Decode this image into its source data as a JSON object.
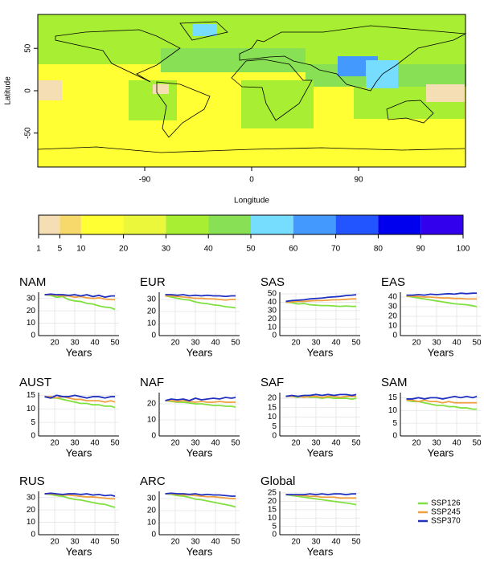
{
  "map": {
    "xlabel": "Longitude",
    "ylabel": "Latitude",
    "xlim": [
      -180,
      180
    ],
    "ylim": [
      -90,
      90
    ],
    "xticks": [
      -90,
      0,
      90
    ],
    "yticks": [
      -50,
      0,
      50
    ]
  },
  "colorbar": {
    "breaks": [
      1,
      5,
      10,
      20,
      30,
      40,
      50,
      60,
      70,
      80,
      90,
      100
    ],
    "colors": [
      "#f5deb3",
      "#f7d86a",
      "#ffff33",
      "#eaf73a",
      "#a8ee33",
      "#88e055",
      "#77ddff",
      "#4499ff",
      "#2255ff",
      "#0000ee",
      "#3300ee"
    ]
  },
  "chart_data": [
    {
      "type": "line",
      "title": "NAM",
      "xlabel": "Years",
      "x": [
        15,
        18,
        21,
        24,
        27,
        30,
        33,
        36,
        39,
        42,
        45,
        48,
        50
      ],
      "xlim": [
        12,
        52
      ],
      "xticks": [
        20,
        30,
        40,
        50
      ],
      "ylim": [
        0,
        35
      ],
      "yticks": [
        0,
        10,
        20,
        30
      ],
      "series": [
        {
          "name": "SSP126",
          "color": "#80e040",
          "values": [
            33,
            32.5,
            31,
            31.5,
            29,
            28,
            27.5,
            26,
            25.5,
            24,
            23,
            22.5,
            21
          ]
        },
        {
          "name": "SSP245",
          "color": "#f0a040",
          "values": [
            33,
            33,
            32.5,
            32,
            32,
            31,
            31.5,
            30.5,
            30,
            30.5,
            29.5,
            29,
            29
          ]
        },
        {
          "name": "SSP370",
          "color": "#2030c0",
          "values": [
            33,
            33.5,
            33,
            33,
            32.5,
            33,
            32,
            33,
            31.5,
            32.5,
            31,
            32,
            32
          ]
        }
      ]
    },
    {
      "type": "line",
      "title": "EUR",
      "xlabel": "Years",
      "x": [
        15,
        18,
        21,
        24,
        27,
        30,
        33,
        36,
        39,
        42,
        45,
        48,
        50
      ],
      "xlim": [
        12,
        52
      ],
      "xticks": [
        20,
        30,
        40,
        50
      ],
      "ylim": [
        0,
        36
      ],
      "yticks": [
        0,
        10,
        20,
        30
      ],
      "series": [
        {
          "name": "SSP126",
          "color": "#80e040",
          "values": [
            33,
            32,
            31,
            30,
            29.5,
            28,
            27,
            26.5,
            25.5,
            25,
            24,
            23.5,
            23
          ]
        },
        {
          "name": "SSP245",
          "color": "#f0a040",
          "values": [
            33,
            33,
            32.5,
            32,
            31.5,
            31,
            31,
            30.5,
            30.5,
            30,
            29.5,
            30,
            30
          ]
        },
        {
          "name": "SSP370",
          "color": "#2030c0",
          "values": [
            34,
            34,
            33.5,
            34,
            33,
            33.5,
            33,
            33.5,
            33,
            33,
            32.5,
            33,
            33
          ]
        }
      ]
    },
    {
      "type": "line",
      "title": "SAS",
      "xlabel": "Years",
      "x": [
        15,
        18,
        21,
        24,
        27,
        30,
        33,
        36,
        39,
        42,
        45,
        48,
        50
      ],
      "xlim": [
        12,
        52
      ],
      "xticks": [
        20,
        30,
        40,
        50
      ],
      "ylim": [
        0,
        52
      ],
      "yticks": [
        0,
        10,
        20,
        30,
        40,
        50
      ],
      "series": [
        {
          "name": "SSP126",
          "color": "#80e040",
          "values": [
            40,
            39.5,
            38,
            38.5,
            37,
            36.5,
            36,
            36,
            35.5,
            35,
            35.5,
            35,
            35
          ]
        },
        {
          "name": "SSP245",
          "color": "#f0a040",
          "values": [
            40,
            40.5,
            41,
            41,
            41.5,
            42,
            42,
            42.5,
            43,
            43,
            43.5,
            44,
            44
          ]
        },
        {
          "name": "SSP370",
          "color": "#2030c0",
          "values": [
            41,
            42,
            42.5,
            43,
            44,
            44.5,
            45,
            46,
            46.5,
            47,
            48,
            48.5,
            49
          ]
        }
      ]
    },
    {
      "type": "line",
      "title": "EAS",
      "xlabel": "Years",
      "x": [
        15,
        18,
        21,
        24,
        27,
        30,
        33,
        36,
        39,
        42,
        45,
        48,
        50
      ],
      "xlim": [
        12,
        52
      ],
      "xticks": [
        20,
        30,
        40,
        50
      ],
      "ylim": [
        0,
        45
      ],
      "yticks": [
        0,
        10,
        20,
        30,
        40
      ],
      "series": [
        {
          "name": "SSP126",
          "color": "#80e040",
          "values": [
            41,
            40,
            39,
            38,
            37,
            36,
            35,
            34,
            33,
            32.5,
            32,
            31,
            30
          ]
        },
        {
          "name": "SSP245",
          "color": "#f0a040",
          "values": [
            41,
            41,
            40.5,
            40,
            40,
            39.5,
            39,
            39,
            38.5,
            38.5,
            38,
            38,
            38
          ]
        },
        {
          "name": "SSP370",
          "color": "#2030c0",
          "values": [
            42,
            42,
            42.5,
            42,
            43,
            42.5,
            43,
            43.5,
            43,
            44,
            43.5,
            44,
            44
          ]
        }
      ]
    },
    {
      "type": "line",
      "title": "AUST",
      "xlabel": "Years",
      "x": [
        15,
        18,
        21,
        24,
        27,
        30,
        33,
        36,
        39,
        42,
        45,
        48,
        50
      ],
      "xlim": [
        12,
        52
      ],
      "xticks": [
        20,
        30,
        40,
        50
      ],
      "ylim": [
        0,
        16
      ],
      "yticks": [
        0,
        5,
        10,
        15
      ],
      "series": [
        {
          "name": "SSP126",
          "color": "#80e040",
          "values": [
            14.5,
            14,
            14,
            13.5,
            13,
            12.5,
            12,
            12,
            11.5,
            11.5,
            11,
            11,
            10.5
          ]
        },
        {
          "name": "SSP245",
          "color": "#f0a040",
          "values": [
            14.5,
            14.5,
            14,
            14.5,
            14,
            13.5,
            13.5,
            13,
            13,
            13,
            12.5,
            13,
            12.5
          ]
        },
        {
          "name": "SSP370",
          "color": "#2030c0",
          "values": [
            14.5,
            14,
            15,
            14.5,
            14.5,
            15,
            14.5,
            14,
            14.5,
            14.5,
            14,
            14.5,
            14.5
          ]
        }
      ]
    },
    {
      "type": "line",
      "title": "NAF",
      "xlabel": "Years",
      "x": [
        15,
        18,
        21,
        24,
        27,
        30,
        33,
        36,
        39,
        42,
        45,
        48,
        50
      ],
      "xlim": [
        12,
        52
      ],
      "xticks": [
        20,
        30,
        40,
        50
      ],
      "ylim": [
        0,
        27
      ],
      "yticks": [
        0,
        10,
        20
      ],
      "series": [
        {
          "name": "SSP126",
          "color": "#80e040",
          "values": [
            22,
            21.5,
            21,
            21,
            20.5,
            20,
            20,
            19.5,
            19,
            19,
            18.5,
            18.5,
            18
          ]
        },
        {
          "name": "SSP245",
          "color": "#f0a040",
          "values": [
            22,
            22,
            21.5,
            22,
            21.5,
            21,
            21.5,
            21,
            21,
            21.5,
            21,
            21,
            21
          ]
        },
        {
          "name": "SSP370",
          "color": "#2030c0",
          "values": [
            22,
            23,
            22.5,
            23,
            22,
            23.5,
            22.5,
            23,
            23.5,
            23,
            24,
            23.5,
            24
          ]
        }
      ]
    },
    {
      "type": "line",
      "title": "SAF",
      "xlabel": "Years",
      "x": [
        15,
        18,
        21,
        24,
        27,
        30,
        33,
        36,
        39,
        42,
        45,
        48,
        50
      ],
      "xlim": [
        12,
        52
      ],
      "xticks": [
        20,
        30,
        40,
        50
      ],
      "ylim": [
        0,
        23
      ],
      "yticks": [
        0,
        5,
        10,
        15,
        20
      ],
      "series": [
        {
          "name": "SSP126",
          "color": "#80e040",
          "values": [
            21,
            21,
            20.5,
            21,
            20.5,
            20.5,
            20,
            20.5,
            20,
            20,
            20,
            19.5,
            20
          ]
        },
        {
          "name": "SSP245",
          "color": "#f0a040",
          "values": [
            21,
            21,
            21,
            20.5,
            21,
            21,
            20.5,
            21,
            21,
            20.5,
            21,
            21,
            21
          ]
        },
        {
          "name": "SSP370",
          "color": "#2030c0",
          "values": [
            21,
            21.5,
            21,
            21.5,
            21.5,
            22,
            21.5,
            22,
            21.5,
            22,
            22,
            21.5,
            22
          ]
        }
      ]
    },
    {
      "type": "line",
      "title": "SAM",
      "xlabel": "Years",
      "x": [
        15,
        18,
        21,
        24,
        27,
        30,
        33,
        36,
        39,
        42,
        45,
        48,
        50
      ],
      "xlim": [
        12,
        52
      ],
      "xticks": [
        20,
        30,
        40,
        50
      ],
      "ylim": [
        0,
        17
      ],
      "yticks": [
        0,
        5,
        10,
        15
      ],
      "series": [
        {
          "name": "SSP126",
          "color": "#80e040",
          "values": [
            14,
            13.5,
            13.5,
            13,
            12.5,
            12,
            12,
            11.5,
            11.5,
            11,
            11,
            10.5,
            10.5
          ]
        },
        {
          "name": "SSP245",
          "color": "#f0a040",
          "values": [
            14,
            14,
            13.5,
            14,
            13.5,
            13.5,
            13,
            13.5,
            13,
            13,
            13,
            13,
            13
          ]
        },
        {
          "name": "SSP370",
          "color": "#2030c0",
          "values": [
            14.5,
            14.5,
            15,
            14.5,
            15,
            15,
            14.5,
            15,
            15.5,
            15,
            15.5,
            15,
            15.5
          ]
        }
      ]
    },
    {
      "type": "line",
      "title": "RUS",
      "xlabel": "Years",
      "x": [
        15,
        18,
        21,
        24,
        27,
        30,
        33,
        36,
        39,
        42,
        45,
        48,
        50
      ],
      "xlim": [
        12,
        52
      ],
      "xticks": [
        20,
        30,
        40,
        50
      ],
      "ylim": [
        0,
        35
      ],
      "yticks": [
        0,
        10,
        20,
        30
      ],
      "series": [
        {
          "name": "SSP126",
          "color": "#80e040",
          "values": [
            33,
            32.5,
            31.5,
            31,
            29.5,
            28.5,
            28,
            27,
            26,
            25,
            24.5,
            23,
            22
          ]
        },
        {
          "name": "SSP245",
          "color": "#f0a040",
          "values": [
            33,
            33,
            32.5,
            32,
            32,
            31.5,
            31,
            30.5,
            30.5,
            30,
            29.5,
            29,
            29
          ]
        },
        {
          "name": "SSP370",
          "color": "#2030c0",
          "values": [
            33,
            33.5,
            33,
            32.5,
            33,
            33,
            32.5,
            33,
            32,
            32.5,
            31.5,
            32,
            31
          ]
        }
      ]
    },
    {
      "type": "line",
      "title": "ARC",
      "xlabel": "Years",
      "x": [
        15,
        18,
        21,
        24,
        27,
        30,
        33,
        36,
        39,
        42,
        45,
        48,
        50
      ],
      "xlim": [
        12,
        52
      ],
      "xticks": [
        20,
        30,
        40,
        50
      ],
      "ylim": [
        0,
        36
      ],
      "yticks": [
        0,
        10,
        20,
        30
      ],
      "series": [
        {
          "name": "SSP126",
          "color": "#80e040",
          "values": [
            34,
            33.5,
            32.5,
            32,
            31,
            29.5,
            29,
            28,
            27,
            26,
            25,
            24,
            23
          ]
        },
        {
          "name": "SSP245",
          "color": "#f0a040",
          "values": [
            34,
            34,
            33.5,
            33,
            33,
            32.5,
            32,
            31.5,
            31.5,
            31,
            30.5,
            30,
            30
          ]
        },
        {
          "name": "SSP370",
          "color": "#2030c0",
          "values": [
            34,
            34.5,
            34,
            34,
            33.5,
            34,
            33,
            33.5,
            33,
            33,
            32.5,
            32,
            32
          ]
        }
      ]
    },
    {
      "type": "line",
      "title": "Global",
      "xlabel": "Years",
      "x": [
        15,
        18,
        21,
        24,
        27,
        30,
        33,
        36,
        39,
        42,
        45,
        48,
        50
      ],
      "xlim": [
        12,
        52
      ],
      "xticks": [
        20,
        30,
        40,
        50
      ],
      "ylim": [
        0,
        26
      ],
      "yticks": [
        0,
        5,
        10,
        15,
        20,
        25
      ],
      "series": [
        {
          "name": "SSP126",
          "color": "#80e040",
          "values": [
            24,
            23.5,
            23,
            22.5,
            22,
            21.5,
            21,
            20.5,
            20,
            19.5,
            19,
            18.5,
            18
          ]
        },
        {
          "name": "SSP245",
          "color": "#f0a040",
          "values": [
            24,
            24,
            23.5,
            23.5,
            23,
            23,
            22.5,
            22.5,
            22.5,
            22,
            22,
            22,
            22
          ]
        },
        {
          "name": "SSP370",
          "color": "#2030c0",
          "values": [
            24,
            24,
            24,
            24,
            24.5,
            24,
            24.5,
            24,
            24.5,
            24.5,
            24,
            24.5,
            24.5
          ]
        }
      ]
    }
  ]
}
